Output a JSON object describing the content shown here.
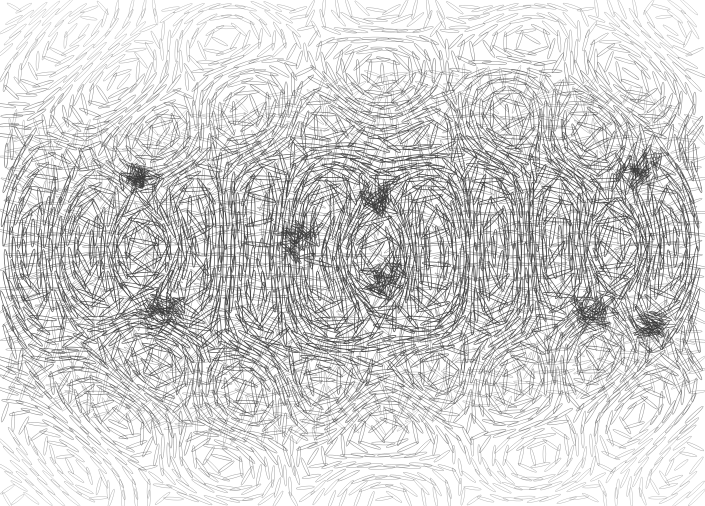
{
  "artwork": {
    "background_color": "#ffffff",
    "stroke_color": "#3a3a3a",
    "mark_shape": "thin-ellipse-leaf",
    "pattern": "interfering-circular-wave-field",
    "wave_centers": [
      {
        "label": "left-cluster"
      },
      {
        "label": "center-swirl"
      },
      {
        "label": "right-cluster"
      }
    ]
  }
}
